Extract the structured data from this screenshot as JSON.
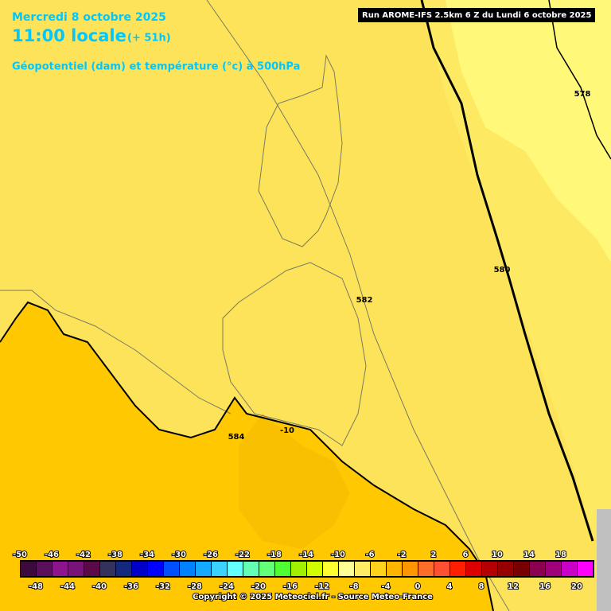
{
  "header": {
    "date": "Mercredi 8 octobre 2025",
    "time": "11:00 locale",
    "lead": "(+ 51h)",
    "subtitle": "Géopotentiel (dam) et température (°c) à 500hPa",
    "run": "Run AROME-IFS 2.5km 6 Z du Lundi 6 octobre 2025"
  },
  "contour_labels": [
    "578",
    "580",
    "582",
    "584",
    "-10"
  ],
  "legend": {
    "values": [
      -50,
      -48,
      -46,
      -44,
      -42,
      -40,
      -38,
      -36,
      -34,
      -32,
      -30,
      -28,
      -26,
      -24,
      -22,
      -20,
      -18,
      -16,
      -14,
      -12,
      -10,
      -8,
      -6,
      -4,
      -2,
      0,
      2,
      4,
      6,
      8,
      10,
      12,
      14,
      16,
      18,
      20
    ],
    "colors": [
      "#3c0a3c",
      "#5a105a",
      "#8c148c",
      "#781478",
      "#5a0a46",
      "#32325a",
      "#14287d",
      "#0000c8",
      "#0000ff",
      "#0050ff",
      "#0082ff",
      "#14aaff",
      "#3cd2ff",
      "#64ffff",
      "#64ffb4",
      "#64ff78",
      "#50ff32",
      "#a0f000",
      "#d2ff00",
      "#ffff32",
      "#ffff96",
      "#ffeb64",
      "#ffd21e",
      "#ffb400",
      "#ff9600",
      "#ff6e28",
      "#ff5032",
      "#ff1e00",
      "#dc0000",
      "#b40000",
      "#960000",
      "#780000",
      "#8c0050",
      "#a00078",
      "#c800c8",
      "#ff00ff"
    ]
  },
  "footer": "Copyright © 2025 Meteociel.fr - Source Meteo-France"
}
